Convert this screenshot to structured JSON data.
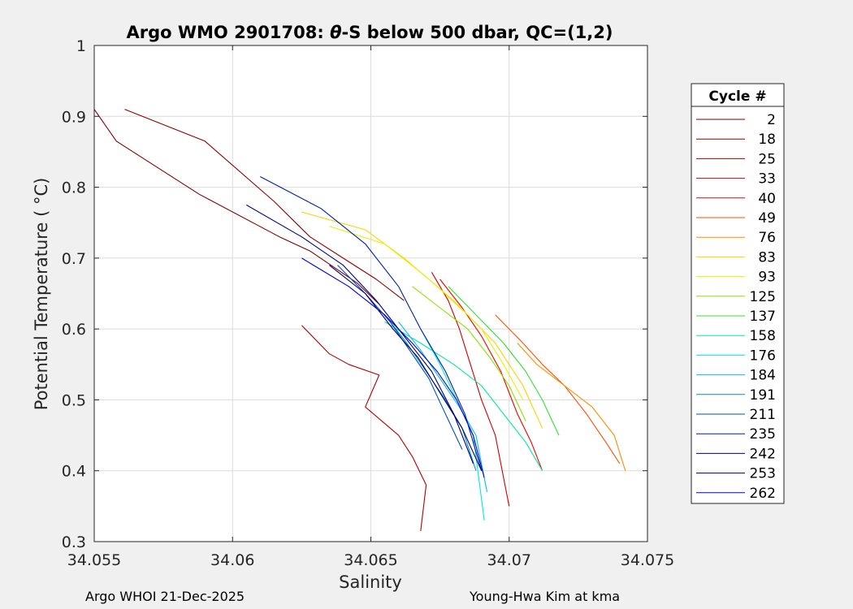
{
  "chart_data": {
    "type": "line",
    "title": "Argo WMO 2901708: θ-S below 500 dbar,  QC=(1,2)",
    "title_parts": {
      "before": "Argo WMO 2901708: ",
      "symbol": "θ",
      "after": "-S below 500 dbar,  QC=(1,2)"
    },
    "xlabel": "Salinity",
    "ylabel": "Potential Temperature ( °C)",
    "xlim": [
      34.055,
      34.075
    ],
    "ylim": [
      0.3,
      1.0
    ],
    "xticks": [
      34.055,
      34.06,
      34.065,
      34.07,
      34.075
    ],
    "xtick_labels": [
      "34.055",
      "34.06",
      "34.065",
      "34.07",
      "34.075"
    ],
    "yticks": [
      0.3,
      0.4,
      0.5,
      0.6,
      0.7,
      0.8,
      0.9,
      1.0
    ],
    "ytick_labels": [
      "0.3",
      "0.4",
      "0.5",
      "0.6",
      "0.7",
      "0.8",
      "0.9",
      "1"
    ],
    "grid": true,
    "legend_title": "Cycle #",
    "legend_position": "outside-right",
    "series": [
      {
        "name": "2",
        "color": "#800000",
        "x": [
          34.055,
          34.0558,
          34.0588,
          34.0617,
          34.0628,
          34.0645,
          34.0653
        ],
        "y": [
          0.91,
          0.865,
          0.79,
          0.73,
          0.71,
          0.665,
          0.635
        ]
      },
      {
        "name": "18",
        "color": "#8c0000",
        "x": [
          34.0561,
          34.059,
          34.0615,
          34.0628,
          34.064,
          34.0652,
          34.0662
        ],
        "y": [
          0.91,
          0.865,
          0.78,
          0.73,
          0.7,
          0.67,
          0.64
        ]
      },
      {
        "name": "25",
        "color": "#b00000",
        "x": [
          34.0625,
          34.0635,
          34.0642,
          34.0653,
          34.0648,
          34.066,
          34.0665,
          34.067,
          34.0668
        ],
        "y": [
          0.605,
          0.565,
          0.55,
          0.535,
          0.49,
          0.45,
          0.42,
          0.38,
          0.315
        ]
      },
      {
        "name": "33",
        "color": "#d00000",
        "x": [
          34.0672,
          34.0678,
          34.0682,
          34.0686,
          34.069,
          34.0695,
          34.07
        ],
        "y": [
          0.68,
          0.64,
          0.6,
          0.55,
          0.5,
          0.45,
          0.35
        ]
      },
      {
        "name": "40",
        "color": "#f00000",
        "x": [
          34.0675,
          34.0683,
          34.069,
          34.0697,
          34.0703,
          34.0708,
          34.0712
        ],
        "y": [
          0.67,
          0.63,
          0.59,
          0.54,
          0.48,
          0.44,
          0.4
        ]
      },
      {
        "name": "49",
        "color": "#ff5000",
        "x": [
          34.0695,
          34.0705,
          34.0712,
          34.072,
          34.0728,
          34.0735,
          34.074
        ],
        "y": [
          0.62,
          0.58,
          0.55,
          0.52,
          0.48,
          0.44,
          0.41
        ]
      },
      {
        "name": "76",
        "color": "#ff8c00",
        "x": [
          34.0703,
          34.071,
          34.072,
          34.073,
          34.0738,
          34.0742
        ],
        "y": [
          0.58,
          0.55,
          0.52,
          0.49,
          0.45,
          0.4
        ]
      },
      {
        "name": "83",
        "color": "#ffd000",
        "x": [
          34.0625,
          34.0648,
          34.0662,
          34.0674,
          34.0685,
          34.0695,
          34.0705,
          34.0712
        ],
        "y": [
          0.765,
          0.74,
          0.7,
          0.66,
          0.62,
          0.58,
          0.52,
          0.46
        ]
      },
      {
        "name": "93",
        "color": "#e8f000",
        "x": [
          34.0635,
          34.0655,
          34.0668,
          34.068,
          34.069,
          34.0698,
          34.0705
        ],
        "y": [
          0.745,
          0.72,
          0.68,
          0.64,
          0.6,
          0.55,
          0.5
        ]
      },
      {
        "name": "125",
        "color": "#90e000",
        "x": [
          34.0665,
          34.0675,
          34.0685,
          34.0693,
          34.07,
          34.0706
        ],
        "y": [
          0.66,
          0.63,
          0.6,
          0.56,
          0.52,
          0.47
        ]
      },
      {
        "name": "137",
        "color": "#30e030",
        "x": [
          34.0678,
          34.0688,
          34.0698,
          34.0706,
          34.0712,
          34.0718
        ],
        "y": [
          0.66,
          0.62,
          0.58,
          0.54,
          0.5,
          0.45
        ]
      },
      {
        "name": "158",
        "color": "#00e8a0",
        "x": [
          34.0655,
          34.0668,
          34.068,
          34.069,
          34.0698,
          34.0706,
          34.0712
        ],
        "y": [
          0.61,
          0.58,
          0.55,
          0.52,
          0.48,
          0.44,
          0.4
        ]
      },
      {
        "name": "176",
        "color": "#00e8e0",
        "x": [
          34.0668,
          34.0675,
          34.0681,
          34.0687,
          34.0691
        ],
        "y": [
          0.6,
          0.55,
          0.5,
          0.45,
          0.33
        ]
      },
      {
        "name": "184",
        "color": "#00c0f0",
        "x": [
          34.066,
          34.0668,
          34.0675,
          34.0682,
          34.0688,
          34.0692
        ],
        "y": [
          0.61,
          0.57,
          0.53,
          0.49,
          0.45,
          0.37
        ]
      },
      {
        "name": "191",
        "color": "#0090d0",
        "x": [
          34.0655,
          34.0663,
          34.067,
          34.0677,
          34.0683,
          34.0688
        ],
        "y": [
          0.62,
          0.58,
          0.54,
          0.5,
          0.46,
          0.4
        ]
      },
      {
        "name": "211",
        "color": "#0050c0",
        "x": [
          34.0638,
          34.0648,
          34.0657,
          34.0664,
          34.0671,
          34.0677,
          34.0683
        ],
        "y": [
          0.69,
          0.65,
          0.61,
          0.57,
          0.53,
          0.48,
          0.43
        ]
      },
      {
        "name": "235",
        "color": "#0020a0",
        "x": [
          34.061,
          34.0632,
          34.0648,
          34.066,
          34.0668,
          34.0677,
          34.0684,
          34.069
        ],
        "y": [
          0.815,
          0.77,
          0.72,
          0.66,
          0.6,
          0.54,
          0.48,
          0.4
        ]
      },
      {
        "name": "242",
        "color": "#000080",
        "x": [
          34.0605,
          34.0625,
          34.064,
          34.0652,
          34.0662,
          34.0672,
          34.068,
          34.0687
        ],
        "y": [
          0.775,
          0.73,
          0.69,
          0.64,
          0.59,
          0.54,
          0.48,
          0.41
        ]
      },
      {
        "name": "253",
        "color": "#000060",
        "x": [
          34.0635,
          34.0648,
          34.0658,
          34.0667,
          34.0675,
          34.0683,
          34.069
        ],
        "y": [
          0.69,
          0.65,
          0.6,
          0.56,
          0.51,
          0.46,
          0.4
        ]
      },
      {
        "name": "262",
        "color": "#0000cd",
        "x": [
          34.0625,
          34.0642,
          34.0655,
          34.0665,
          34.0674,
          34.0681,
          34.0687,
          34.0691
        ],
        "y": [
          0.7,
          0.66,
          0.62,
          0.58,
          0.54,
          0.5,
          0.45,
          0.39
        ]
      }
    ]
  },
  "footer": {
    "left": "Argo WHOI 21-Dec-2025",
    "right": "Young-Hwa Kim at kma"
  }
}
